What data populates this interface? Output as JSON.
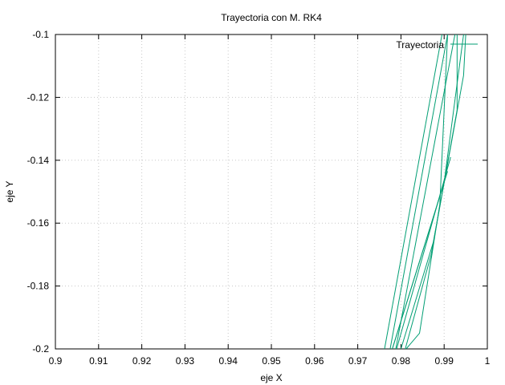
{
  "chart_data": {
    "type": "line",
    "title": "Trayectoria con M. RK4",
    "xlabel": "eje X",
    "ylabel": "eje Y",
    "xlim": [
      0.9,
      1.0
    ],
    "ylim": [
      -0.2,
      -0.1
    ],
    "grid": true,
    "legend_position": "top-right",
    "x_ticks": [
      "0.9",
      "0.91",
      "0.92",
      "0.93",
      "0.94",
      "0.95",
      "0.96",
      "0.97",
      "0.98",
      "0.99",
      "1"
    ],
    "y_ticks": [
      "-0.1",
      "-0.12",
      "-0.14",
      "-0.16",
      "-0.18",
      "-0.2"
    ],
    "series": [
      {
        "name": "Trayectoria",
        "color": "#009e73",
        "segments": [
          [
            [
              0.9762,
              -0.2
            ],
            [
              0.9895,
              -0.1
            ]
          ],
          [
            [
              0.9775,
              -0.2
            ],
            [
              0.9908,
              -0.1
            ]
          ],
          [
            [
              0.9788,
              -0.2
            ],
            [
              0.9925,
              -0.1
            ]
          ],
          [
            [
              0.978,
              -0.2
            ],
            [
              0.9908,
              -0.1435
            ]
          ],
          [
            [
              0.979,
              -0.2
            ],
            [
              0.9915,
              -0.139
            ]
          ],
          [
            [
              0.98,
              -0.2
            ],
            [
              0.9875,
              -0.166
            ],
            [
              0.993,
              -0.124
            ],
            [
              0.993,
              -0.1
            ]
          ],
          [
            [
              0.9812,
              -0.2
            ],
            [
              0.9843,
              -0.195
            ],
            [
              0.989,
              -0.154
            ],
            [
              0.9908,
              -0.1
            ]
          ],
          [
            [
              0.981,
              -0.2
            ],
            [
              0.987,
              -0.17
            ],
            [
              0.9945,
              -0.113
            ],
            [
              0.995,
              -0.1
            ]
          ],
          [
            [
              0.978,
              -0.2
            ],
            [
              0.99,
              -0.147
            ],
            [
              0.9945,
              -0.1
            ]
          ]
        ]
      }
    ]
  }
}
